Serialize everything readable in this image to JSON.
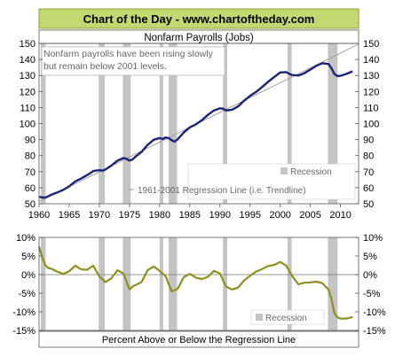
{
  "header": {
    "title": "Chart of the Day - www.chartoftheday.com"
  },
  "colors": {
    "header_bg": "#c2d870",
    "header_border": "#8aa238",
    "payroll_line": "#1a2478",
    "trend_line": "#999999",
    "recession_bar": "#c4c4c4",
    "deviation_line": "#8f8f1e",
    "zero_line": "#777777"
  },
  "chart_data": [
    {
      "type": "line",
      "title": "Nonfarm Payrolls (Jobs)",
      "annotation": "Nonfarm payrolls have been rising slowly but remain below 2001 levels.",
      "xlim": [
        1960,
        2013
      ],
      "ylim": [
        50,
        150
      ],
      "x_ticks": [
        1960,
        1965,
        1970,
        1975,
        1980,
        1985,
        1990,
        1995,
        2000,
        2005,
        2010
      ],
      "y_ticks": [
        50,
        60,
        70,
        80,
        90,
        100,
        110,
        120,
        130,
        140,
        150
      ],
      "grid": false,
      "legend": {
        "placement": "bottom-right",
        "entries": [
          "Recession",
          "1961-2001 Regression Line (i.e. Trendline)"
        ]
      },
      "recessions": [
        [
          1960.3,
          1961.1
        ],
        [
          1969.9,
          1970.9
        ],
        [
          1973.9,
          1975.2
        ],
        [
          1980.0,
          1980.6
        ],
        [
          1981.5,
          1982.9
        ],
        [
          1990.5,
          1991.2
        ],
        [
          2001.2,
          2001.9
        ],
        [
          2007.9,
          2009.5
        ]
      ],
      "trendline": {
        "name": "1961-2001 Regression Line (i.e. Trendline)",
        "x": [
          1960,
          2013
        ],
        "y": [
          51.4,
          149.5
        ]
      },
      "series": [
        {
          "name": "Nonfarm Payrolls",
          "x": [
            1960,
            1960.5,
            1961,
            1961.5,
            1962,
            1963,
            1964,
            1965,
            1966,
            1967,
            1968,
            1969,
            1970,
            1970.5,
            1971,
            1972,
            1973,
            1974,
            1974.5,
            1975,
            1975.5,
            1976,
            1977,
            1978,
            1979,
            1980,
            1980.5,
            1981,
            1981.5,
            1982,
            1982.5,
            1983,
            1984,
            1985,
            1986,
            1987,
            1988,
            1989,
            1990,
            1990.5,
            1991,
            1992,
            1993,
            1994,
            1995,
            1996,
            1997,
            1998,
            1999,
            2000,
            2001,
            2001.5,
            2002,
            2003,
            2004,
            2005,
            2006,
            2007,
            2008,
            2008.5,
            2009,
            2009.5,
            2010,
            2011,
            2012
          ],
          "y": [
            54.3,
            54.0,
            53.8,
            54.6,
            55.6,
            57.0,
            58.6,
            60.9,
            63.9,
            65.8,
            67.9,
            70.4,
            71.0,
            70.6,
            71.3,
            73.8,
            76.9,
            78.5,
            78.0,
            76.9,
            77.6,
            79.4,
            82.4,
            86.7,
            89.9,
            91.0,
            90.4,
            91.4,
            90.9,
            89.6,
            88.8,
            90.2,
            94.4,
            97.6,
            99.5,
            102.1,
            105.4,
            108.2,
            109.5,
            109.3,
            108.2,
            108.6,
            110.7,
            114.2,
            117.3,
            119.7,
            122.8,
            126.1,
            129.0,
            131.9,
            132.1,
            131.0,
            130.3,
            130.0,
            131.4,
            133.7,
            136.1,
            137.6,
            137.2,
            134.5,
            130.9,
            129.6,
            129.8,
            131.0,
            132.6
          ]
        }
      ]
    },
    {
      "type": "line",
      "xlabel": "Percent Above or Below the Regression Line",
      "xlim": [
        1960,
        2013
      ],
      "ylim": [
        -15,
        10
      ],
      "y_ticks": [
        -15,
        -10,
        -5,
        0,
        5,
        10
      ],
      "y_tick_labels": [
        "-15%",
        "-10%",
        "-5%",
        "0%",
        "5%",
        "10%"
      ],
      "grid": false,
      "legend": {
        "placement": "bottom-right",
        "entries": [
          "Recession"
        ]
      },
      "recessions": [
        [
          1960.3,
          1961.1
        ],
        [
          1969.9,
          1970.9
        ],
        [
          1973.9,
          1975.2
        ],
        [
          1980.0,
          1980.6
        ],
        [
          1981.5,
          1982.9
        ],
        [
          1990.5,
          1991.2
        ],
        [
          2001.2,
          2001.9
        ],
        [
          2007.9,
          2009.5
        ]
      ],
      "series": [
        {
          "name": "Percent Above or Below the Regression Line",
          "x": [
            1960,
            1960.5,
            1961,
            1961.5,
            1962,
            1963,
            1964,
            1965,
            1966,
            1967,
            1968,
            1969,
            1970,
            1971,
            1972,
            1973,
            1974,
            1975,
            1975.5,
            1976,
            1977,
            1978,
            1979,
            1980,
            1981,
            1982,
            1983,
            1984,
            1985,
            1986,
            1987,
            1988,
            1989,
            1990,
            1991,
            1992,
            1993,
            1994,
            1995,
            1996,
            1997,
            1998,
            1999,
            2000,
            2001,
            2002,
            2003,
            2004,
            2005,
            2006,
            2007,
            2008,
            2008.5,
            2009,
            2009.5,
            2010,
            2011,
            2012
          ],
          "y": [
            7.5,
            4.8,
            2.6,
            1.8,
            1.6,
            0.8,
            0.2,
            0.9,
            2.4,
            1.4,
            1.3,
            2.4,
            -0.5,
            -2.0,
            -1.0,
            1.2,
            0.3,
            -4.0,
            -3.2,
            -2.8,
            -2.0,
            1.2,
            2.2,
            1.0,
            -0.4,
            -4.5,
            -3.8,
            -0.7,
            0.2,
            -0.8,
            -1.2,
            -0.6,
            1.0,
            0.3,
            -3.2,
            -4.0,
            -3.5,
            -1.6,
            -0.3,
            0.8,
            1.5,
            2.3,
            2.6,
            3.4,
            2.4,
            -0.4,
            -2.6,
            -2.2,
            -2.1,
            -1.9,
            -2.3,
            -4.0,
            -6.5,
            -10.4,
            -11.5,
            -11.8,
            -11.8,
            -11.4
          ]
        }
      ]
    }
  ]
}
